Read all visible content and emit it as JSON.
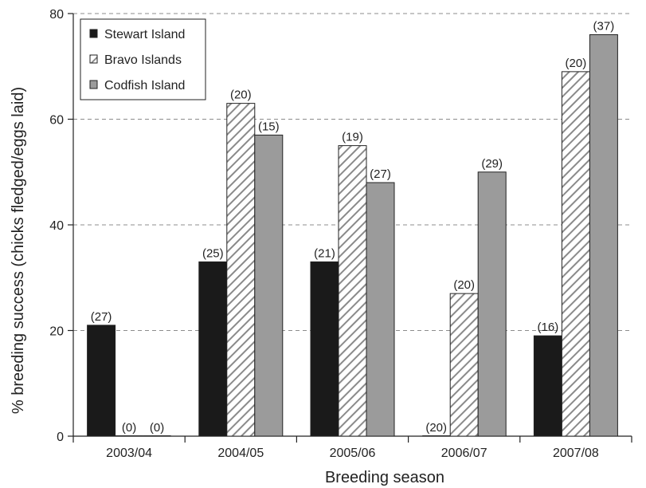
{
  "chart_data": {
    "type": "bar",
    "title": "",
    "xlabel": "Breeding season",
    "ylabel": "% breeding success (chicks fledged/eggs laid)",
    "ylim": [
      0,
      80
    ],
    "yticks": [
      0,
      20,
      40,
      60,
      80
    ],
    "grid": "horizontal dashed",
    "legend": "top-left",
    "categories": [
      "2003/04",
      "2004/05",
      "2005/06",
      "2006/07",
      "2007/08"
    ],
    "series": [
      {
        "name": "Stewart Island",
        "pattern": "solid",
        "color": "#1a1a1a",
        "values": [
          21,
          33,
          33,
          0,
          19
        ],
        "labels": [
          "(27)",
          "(25)",
          "(21)",
          "(20)",
          "(16)"
        ]
      },
      {
        "name": "Bravo Islands",
        "pattern": "hatched",
        "color": "#8a8a8a",
        "values": [
          0,
          63,
          55,
          27,
          69
        ],
        "labels": [
          "(0)",
          "(20)",
          "(19)",
          "(20)",
          "(20)"
        ]
      },
      {
        "name": "Codfish Island",
        "pattern": "solid",
        "color": "#9b9b9b",
        "values": [
          0,
          57,
          48,
          50,
          76
        ],
        "labels": [
          "(0)",
          "(15)",
          "(27)",
          "(29)",
          "(37)"
        ]
      }
    ]
  }
}
